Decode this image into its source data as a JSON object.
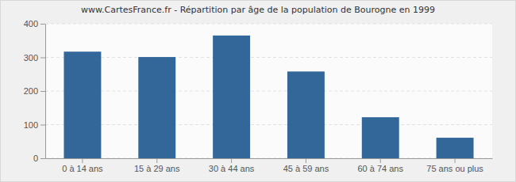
{
  "chart_data": {
    "type": "bar",
    "title": "www.CartesFrance.fr - Répartition par âge de la population de Bourogne en 1999",
    "categories": [
      "0 à 14 ans",
      "15 à 29 ans",
      "30 à 44 ans",
      "45 à 59 ans",
      "60 à 74 ans",
      "75 ans ou plus"
    ],
    "values": [
      317,
      301,
      365,
      258,
      122,
      61
    ],
    "color": "#336699",
    "ylim": [
      0,
      400
    ],
    "yticks": [
      0,
      100,
      200,
      300,
      400
    ],
    "grid": true
  }
}
